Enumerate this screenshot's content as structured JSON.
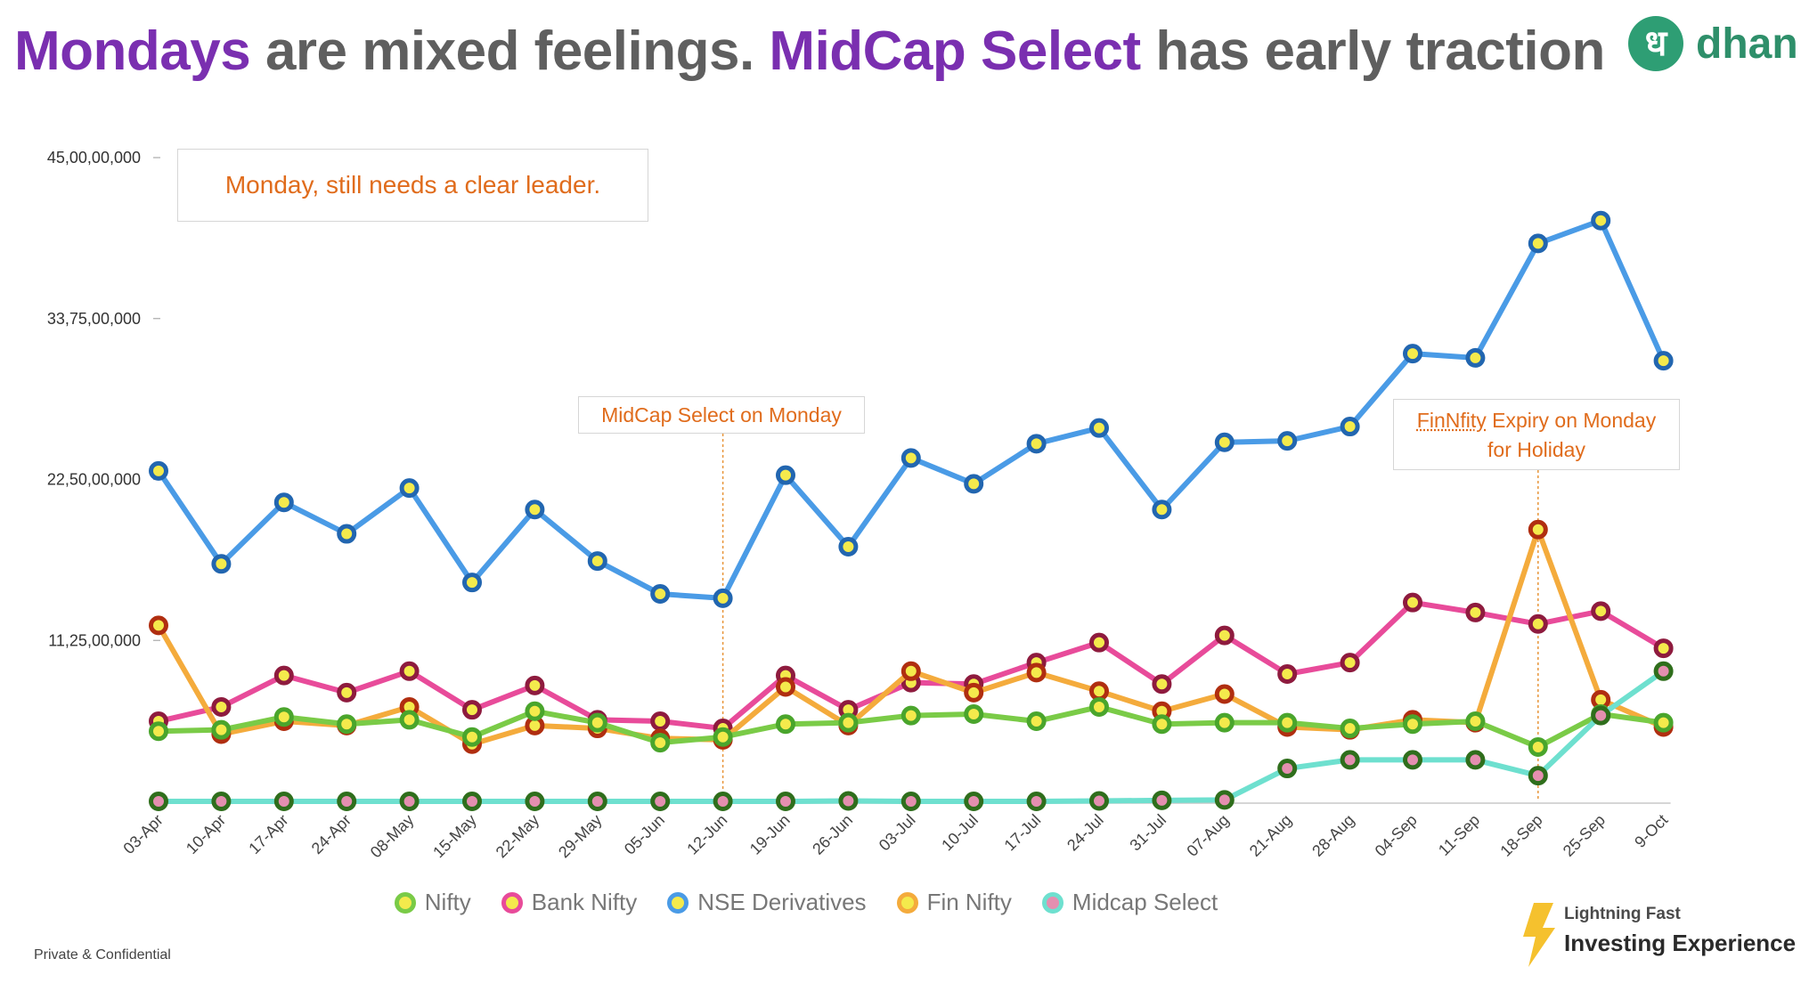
{
  "header": {
    "title_part1": "Mondays",
    "title_part2": " are mixed feelings. ",
    "title_part3": "MidCap Select",
    "title_part4": " has early traction",
    "accent_color": "#7a2fb0",
    "logo_glyph": "ध",
    "logo_word": "dhan"
  },
  "annotations": {
    "leader": "Monday, still needs a clear leader.",
    "midcap_monday": "MidCap Select on Monday",
    "fin_line1_word": "FinNfity",
    "fin_line1_rest": " Expiry on Monday",
    "fin_line2": "for Holiday",
    "text_color": "#e06c1c"
  },
  "footer": {
    "confidential": "Private & Confidential"
  },
  "badge": {
    "line1": "Lightning Fast",
    "line2": "Investing Experience",
    "icon": "lightning-bolt-icon"
  },
  "chart_data": {
    "type": "line",
    "ylim": [
      0,
      450000000
    ],
    "yticks": [
      0,
      112500000,
      225000000,
      337500000,
      450000000
    ],
    "ytick_labels": [
      "",
      "11,25,00,000",
      "22,50,00,000",
      "33,75,00,000",
      "45,00,00,000"
    ],
    "categories": [
      "03-Apr",
      "10-Apr",
      "17-Apr",
      "24-Apr",
      "08-May",
      "15-May",
      "22-May",
      "29-May",
      "05-Jun",
      "12-Jun",
      "19-Jun",
      "26-Jun",
      "03-Jul",
      "10-Jul",
      "17-Jul",
      "24-Jul",
      "31-Jul",
      "07-Aug",
      "21-Aug",
      "28-Aug",
      "04-Sep",
      "11-Sep",
      "18-Sep",
      "25-Sep",
      "9-Oct"
    ],
    "series": [
      {
        "name": "NSE Derivatives",
        "line_color": "#4a9be6",
        "marker_border": "#2266b0",
        "marker_fill": "#f4ea4c",
        "values": [
          231000000,
          166000000,
          209000000,
          187000000,
          219000000,
          153000000,
          204000000,
          168000000,
          145000000,
          142000000,
          228000000,
          178000000,
          240000000,
          222000000,
          250000000,
          261000000,
          204000000,
          251000000,
          252000000,
          262000000,
          313000000,
          310000000,
          390000000,
          406000000,
          308000000
        ]
      },
      {
        "name": "Bank Nifty",
        "line_color": "#e84b9a",
        "marker_border": "#8e1b3e",
        "marker_fill": "#f4ea4c",
        "values": [
          56000000,
          66000000,
          88000000,
          76000000,
          91000000,
          64000000,
          81000000,
          57000000,
          56000000,
          51000000,
          88000000,
          64000000,
          83000000,
          82000000,
          97000000,
          111000000,
          82000000,
          116000000,
          89000000,
          97000000,
          139000000,
          132000000,
          124000000,
          133000000,
          107000000
        ]
      },
      {
        "name": "Fin Nifty",
        "line_color": "#f4ab3c",
        "marker_border": "#b02e10",
        "marker_fill": "#f4ea4c",
        "values": [
          123000000,
          47000000,
          56000000,
          53000000,
          66000000,
          40000000,
          53000000,
          51000000,
          44000000,
          43000000,
          80000000,
          53000000,
          91000000,
          76000000,
          90000000,
          77000000,
          63000000,
          75000000,
          52000000,
          50000000,
          57000000,
          55000000,
          190000000,
          71000000,
          52000000
        ]
      },
      {
        "name": "Nifty",
        "line_color": "#7acb47",
        "marker_border": "#4aa52c",
        "marker_fill": "#f4ea4c",
        "values": [
          49000000,
          50000000,
          59000000,
          54000000,
          57000000,
          45000000,
          63000000,
          55000000,
          41000000,
          45000000,
          54000000,
          55000000,
          60000000,
          61000000,
          56000000,
          66000000,
          54000000,
          55000000,
          55000000,
          51000000,
          54000000,
          56000000,
          38000000,
          61000000,
          55000000
        ]
      },
      {
        "name": "Midcap Select",
        "line_color": "#6ee0cf",
        "marker_border": "#2f6e1c",
        "marker_fill": "#e48fb0",
        "values": [
          0,
          0,
          0,
          0,
          0,
          0,
          0,
          0,
          0,
          0,
          0,
          300000,
          0,
          0,
          0,
          300000,
          700000,
          1000000,
          23000000,
          29000000,
          29000000,
          29000000,
          18000000,
          60000000,
          91000000
        ]
      }
    ],
    "vlines": [
      {
        "category": "12-Jun",
        "color": "#e8953a"
      },
      {
        "category": "18-Sep",
        "color": "#e8953a"
      }
    ],
    "legend_order": [
      "Nifty",
      "Bank Nifty",
      "NSE Derivatives",
      "Fin Nifty",
      "Midcap Select"
    ],
    "legend_position": "bottom",
    "grid": false
  }
}
